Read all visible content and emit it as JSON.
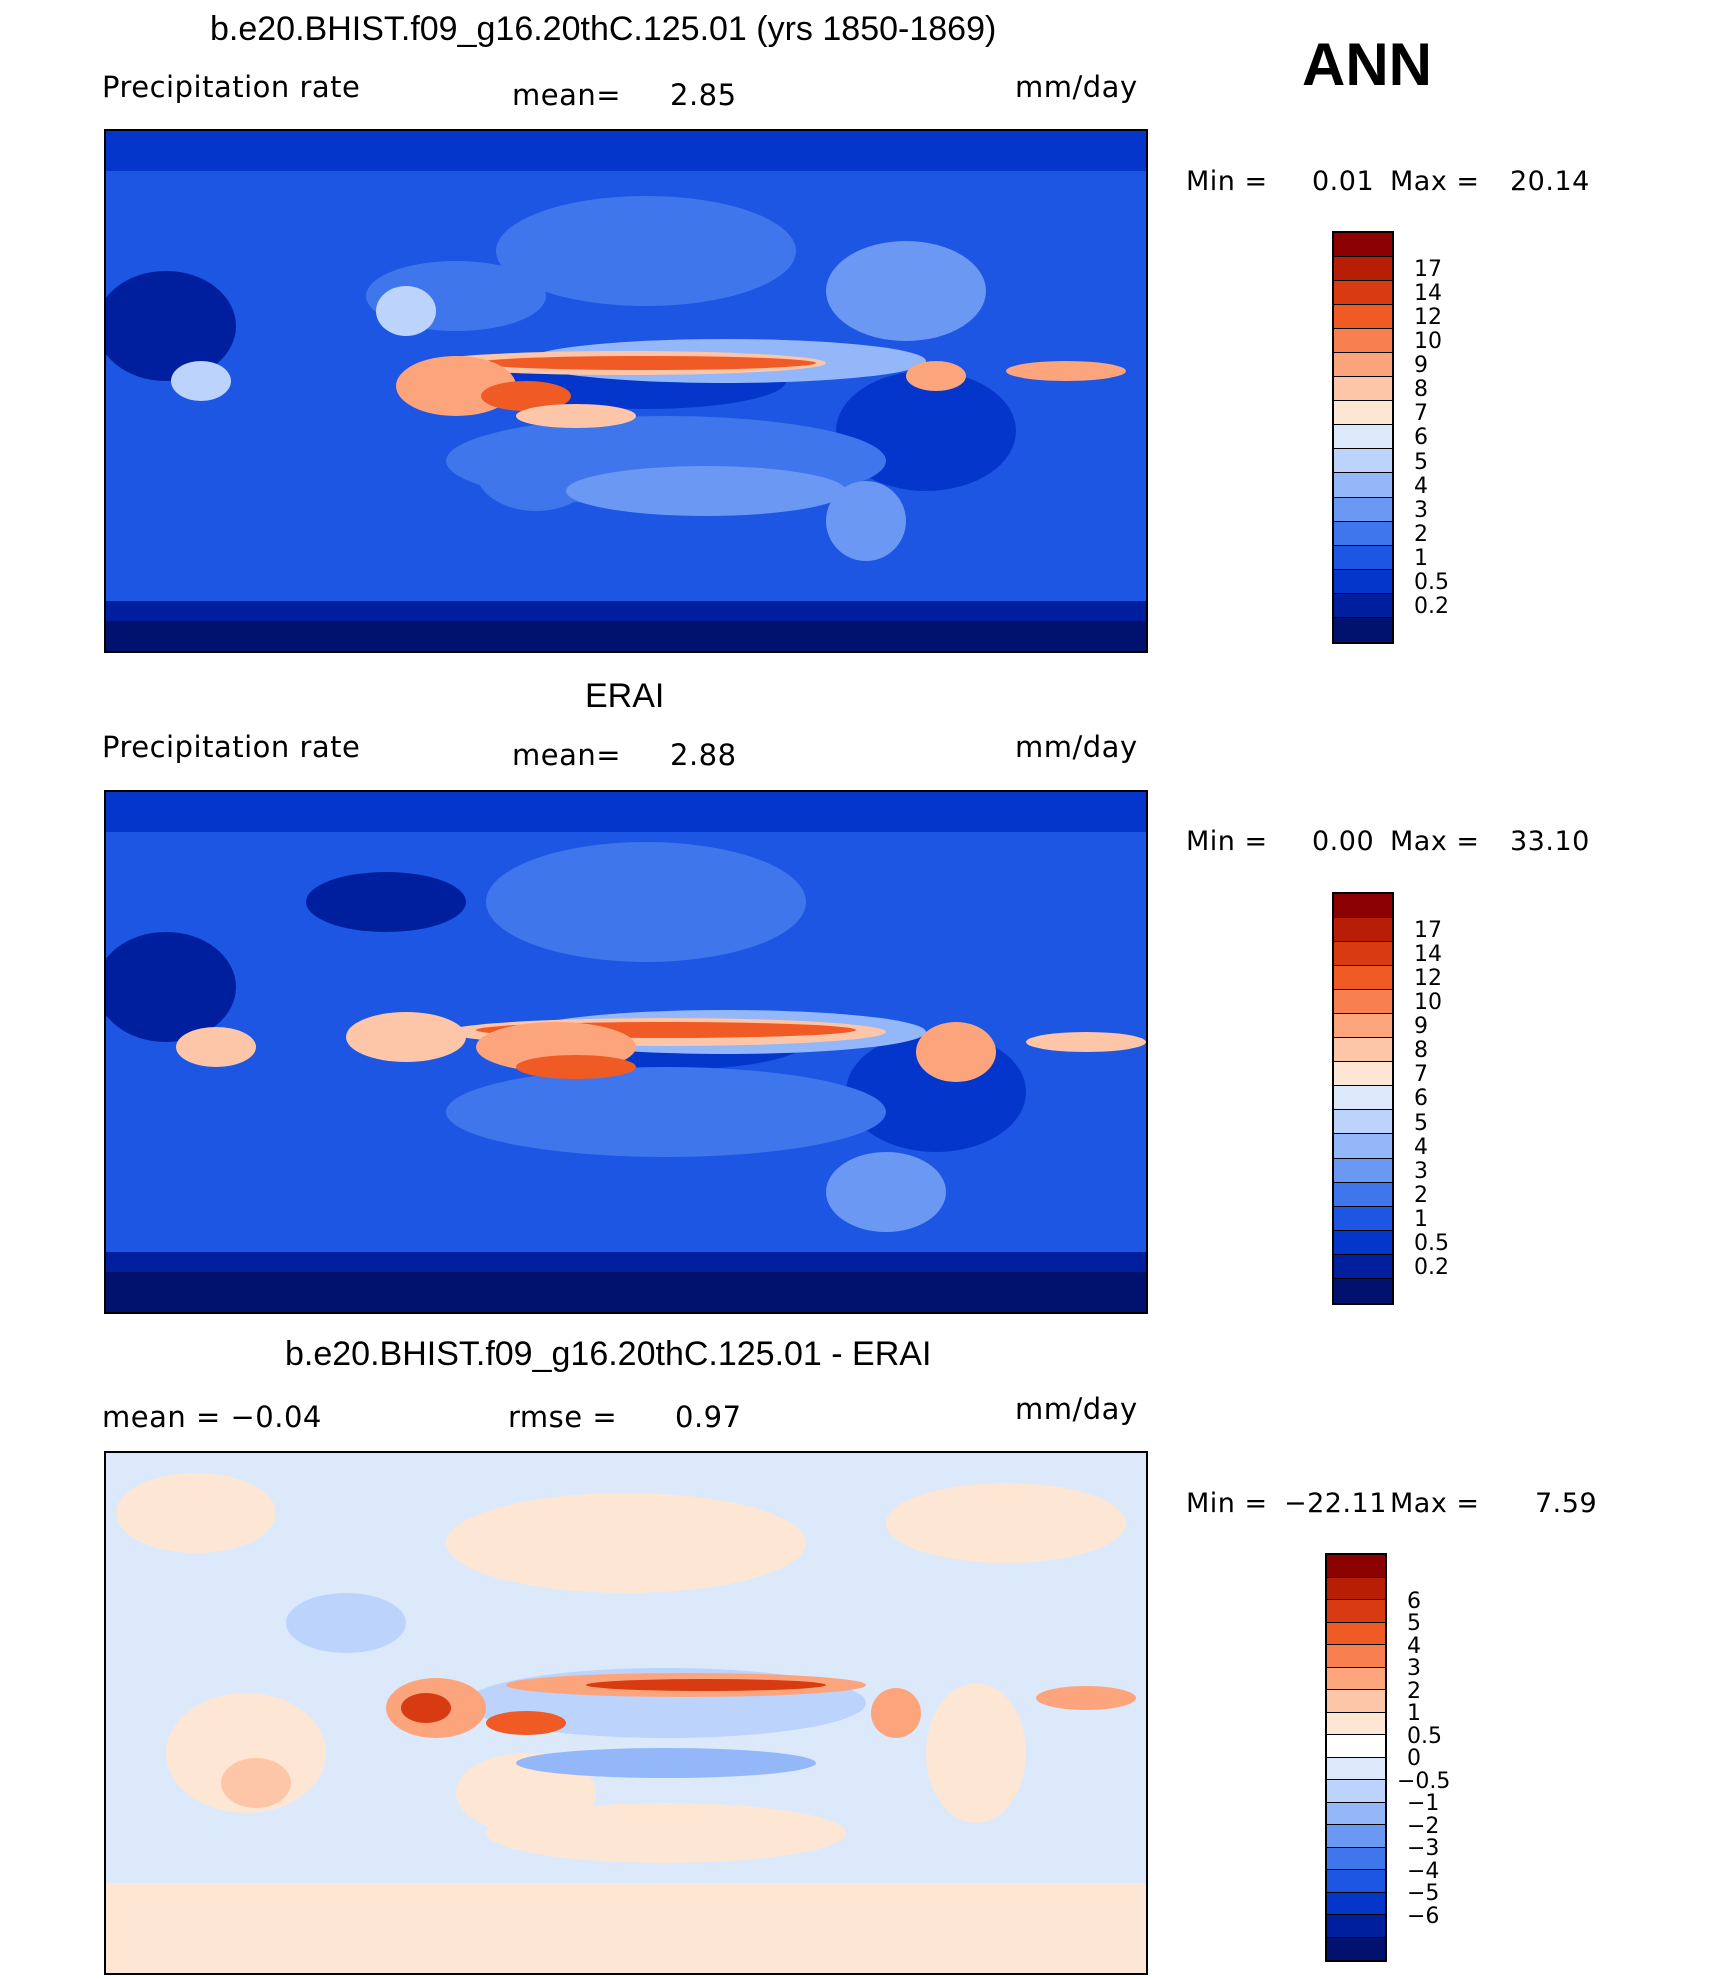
{
  "season": "ANN",
  "units": "mm/day",
  "panels": [
    {
      "id": "model",
      "title": "b.e20.BHIST.f09_g16.20thC.125.01 (yrs 1850-1869)",
      "left_label": "Precipitation  rate",
      "mid_label": "mean=",
      "mid_value": "2.85",
      "units": "mm/day",
      "minmax": {
        "min_label": "Min  =",
        "min": "0.01",
        "max_label": "Max  =",
        "max": "20.14"
      },
      "colorbar": {
        "colors": [
          "#8b0000",
          "#b81d05",
          "#d83a11",
          "#f05a24",
          "#f88050",
          "#fca57d",
          "#fdc6a8",
          "#fde6d4",
          "#dce9fb",
          "#bcd3fb",
          "#93b7f8",
          "#6a98f3",
          "#3f76ec",
          "#1c56e2",
          "#0536cb",
          "#001f9e",
          "#00116e"
        ],
        "labels": [
          "17",
          "14",
          "12",
          "10",
          "9",
          "8",
          "7",
          "6",
          "5",
          "4",
          "3",
          "2",
          "1",
          "0.5",
          "0.2"
        ]
      }
    },
    {
      "id": "obs",
      "title": "ERAI",
      "left_label": "Precipitation  rate",
      "mid_label": "mean=",
      "mid_value": "2.88",
      "units": "mm/day",
      "minmax": {
        "min_label": "Min  =",
        "min": "0.00",
        "max_label": "Max  =",
        "max": "33.10"
      },
      "colorbar": {
        "colors": [
          "#8b0000",
          "#b81d05",
          "#d83a11",
          "#f05a24",
          "#f88050",
          "#fca57d",
          "#fdc6a8",
          "#fde6d4",
          "#dce9fb",
          "#bcd3fb",
          "#93b7f8",
          "#6a98f3",
          "#3f76ec",
          "#1c56e2",
          "#0536cb",
          "#001f9e",
          "#00116e"
        ],
        "labels": [
          "17",
          "14",
          "12",
          "10",
          "9",
          "8",
          "7",
          "6",
          "5",
          "4",
          "3",
          "2",
          "1",
          "0.5",
          "0.2"
        ]
      }
    },
    {
      "id": "diff",
      "title": "b.e20.BHIST.f09_g16.20thC.125.01 - ERAI",
      "left_label": "mean  =     −0.04",
      "mid_label": "rmse  =",
      "mid_value": "0.97",
      "units": "mm/day",
      "minmax": {
        "min_label": "Min  =",
        "min": "−22.11",
        "max_label": "Max  =",
        "max": "7.59"
      },
      "colorbar": {
        "colors": [
          "#8b0000",
          "#b81d05",
          "#d83a11",
          "#f05a24",
          "#f88050",
          "#fca57d",
          "#fdc6a8",
          "#fde6d4",
          "#ffffff",
          "#dce9fb",
          "#bcd3fb",
          "#93b7f8",
          "#6a98f3",
          "#3f76ec",
          "#1c56e2",
          "#0536cb",
          "#001f9e",
          "#00116e"
        ],
        "labels": [
          "6",
          "5",
          "4",
          "3",
          "2",
          "1",
          "0.5",
          "0",
          "−0.5",
          "−1",
          "−2",
          "−3",
          "−4",
          "−5",
          "−6"
        ]
      }
    }
  ]
}
